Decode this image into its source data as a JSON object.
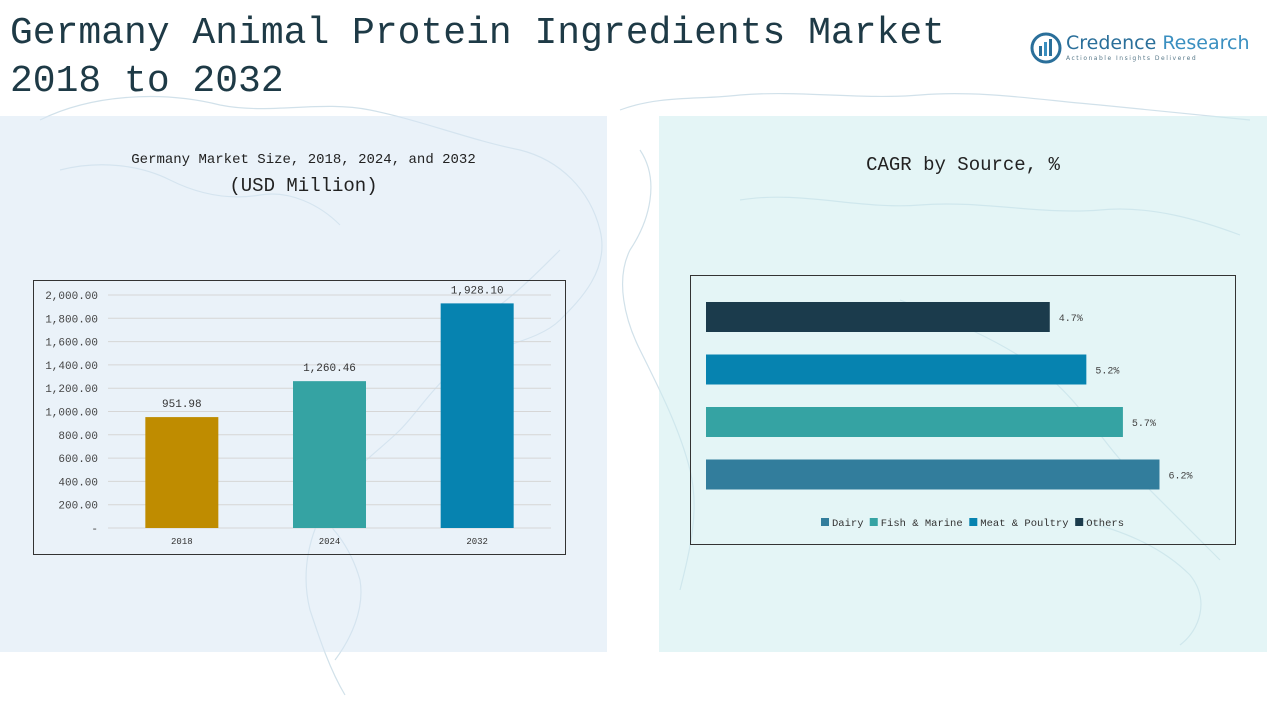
{
  "title": "Germany Animal Protein Ingredients Market 2018 to 2032",
  "logo": {
    "name_part1": "Credence",
    "name_part2": "Research",
    "tagline": "Actionable Insights Delivered"
  },
  "colors": {
    "title": "#1e3a46",
    "bar_2018": "#bf8c00",
    "bar_2024": "#35a3a3",
    "bar_2032": "#0683b0",
    "dairy": "#327d9c",
    "fish_marine": "#35a3a3",
    "meat_poultry": "#0683b0",
    "others": "#1b3b4c"
  },
  "chart_data": [
    {
      "type": "bar",
      "title": "Germany Market Size, 2018, 2024, and 2032",
      "subtitle": "(USD Million)",
      "categories": [
        "2018",
        "2024",
        "2032"
      ],
      "values": [
        951.98,
        1260.46,
        1928.1
      ],
      "value_labels": [
        "951.98",
        "1,260.46",
        "1,928.10"
      ],
      "ylim": [
        0,
        2000
      ],
      "yticks": [
        0,
        200,
        400,
        600,
        800,
        1000,
        1200,
        1400,
        1600,
        1800,
        2000
      ],
      "ytick_labels": [
        "-",
        "200.00",
        "400.00",
        "600.00",
        "800.00",
        "1,000.00",
        "1,200.00",
        "1,400.00",
        "1,600.00",
        "1,800.00",
        "2,000.00"
      ],
      "grid": true
    },
    {
      "type": "bar",
      "orientation": "horizontal",
      "title": "CAGR by Source, %",
      "categories": [
        "Others",
        "Meat & Poultry",
        "Fish & Marine",
        "Dairy"
      ],
      "values": [
        4.7,
        5.2,
        5.7,
        6.2
      ],
      "value_labels": [
        "4.7%",
        "5.2%",
        "5.7%",
        "6.2%"
      ],
      "xlim": [
        0,
        7
      ],
      "legend": [
        "Dairy",
        "Fish & Marine",
        "Meat & Poultry",
        "Others"
      ],
      "legend_position": "bottom"
    }
  ]
}
